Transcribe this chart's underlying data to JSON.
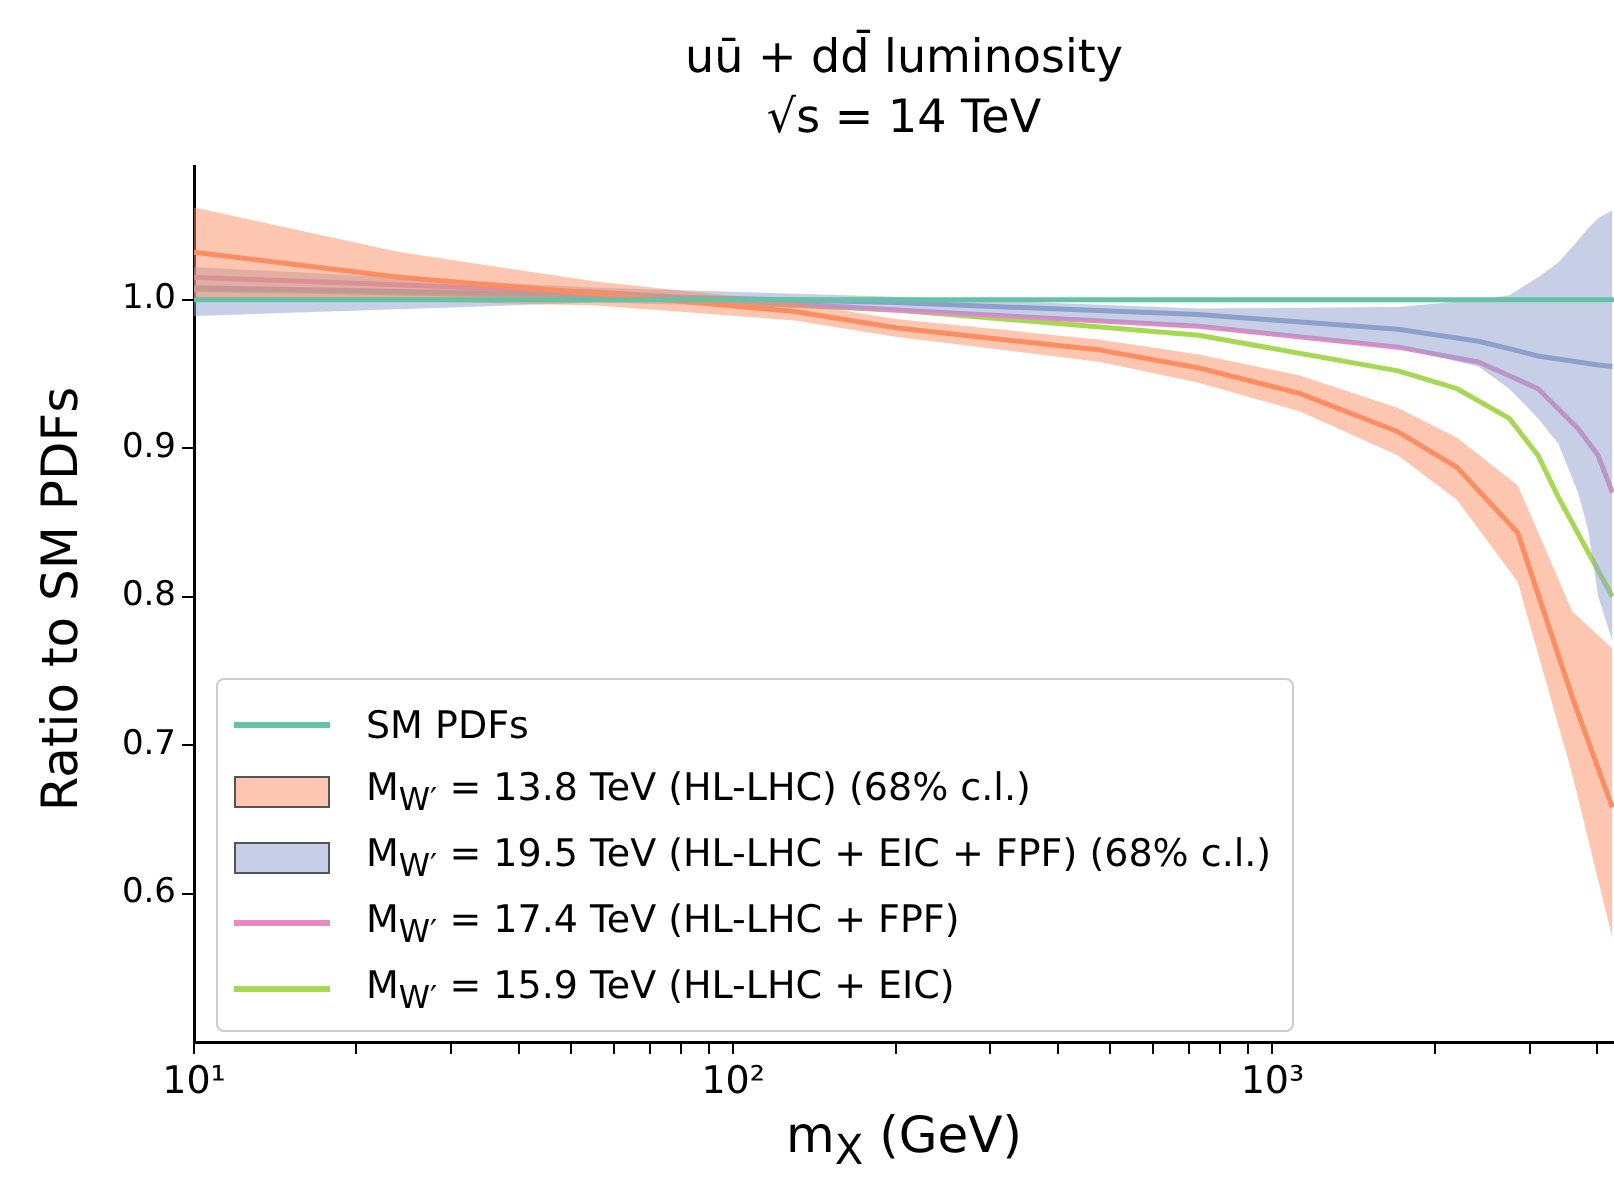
{
  "chart_data": {
    "type": "line",
    "title": "uū + dd̄ luminosity",
    "subtitle": "√s = 14 TeV",
    "xlabel": "m$_{X}$ (GeV)",
    "ylabel": "Ratio to SM PDFs",
    "log": "x",
    "xlim": [
      10,
      4300
    ],
    "ylim": [
      0.5,
      1.09
    ],
    "xticks": [
      {
        "value": 10,
        "label": "10¹"
      },
      {
        "value": 20,
        "label": null
      },
      {
        "value": 30,
        "label": null
      },
      {
        "value": 40,
        "label": null
      },
      {
        "value": 50,
        "label": null
      },
      {
        "value": 60,
        "label": null
      },
      {
        "value": 70,
        "label": null
      },
      {
        "value": 80,
        "label": null
      },
      {
        "value": 90,
        "label": null
      },
      {
        "value": 100,
        "label": "10²"
      },
      {
        "value": 200,
        "label": null
      },
      {
        "value": 300,
        "label": null
      },
      {
        "value": 400,
        "label": null
      },
      {
        "value": 500,
        "label": null
      },
      {
        "value": 600,
        "label": null
      },
      {
        "value": 700,
        "label": null
      },
      {
        "value": 800,
        "label": null
      },
      {
        "value": 900,
        "label": null
      },
      {
        "value": 1000,
        "label": "10³"
      },
      {
        "value": 2000,
        "label": null
      },
      {
        "value": 3000,
        "label": null
      },
      {
        "value": 4000,
        "label": null
      }
    ],
    "yticks": [
      0.6,
      0.7,
      0.8,
      0.9,
      {
        "value": 1,
        "label": "1.0"
      }
    ],
    "grid": false,
    "legend": "bottom left",
    "marker": "none",
    "line_style": "solid",
    "series": [
      {
        "name": "SM PDFs",
        "color": "#66c2a5",
        "x": [
          10,
          4300
        ],
        "values": [
          1,
          1
        ]
      },
      {
        "name": "M$_{W′}$ = 13.8 TeV (HL-LHC) (68% c.l.)",
        "color": "#fc8d62",
        "x": [
          10,
          24,
          56,
          130,
          200,
          480,
          730,
          1120,
          1710,
          2200,
          2850,
          3600,
          4270
        ],
        "values": [
          1.032,
          1.015,
          1.004,
          0.992,
          0.981,
          0.966,
          0.954,
          0.937,
          0.911,
          0.887,
          0.843,
          0.732,
          0.658
        ],
        "lower": [
          1.0,
          0.999,
          0.996,
          0.986,
          0.975,
          0.958,
          0.944,
          0.925,
          0.895,
          0.865,
          0.81,
          0.68,
          0.57
        ],
        "upper": [
          1.062,
          1.032,
          1.012,
          0.998,
          0.987,
          0.973,
          0.963,
          0.949,
          0.927,
          0.907,
          0.875,
          0.79,
          0.765
        ]
      },
      {
        "name": "M$_{W′}$ = 19.5 TeV (HL-LHC + EIC + FPF) (68% c.l.)",
        "color": "#8da0cb",
        "x": [
          10,
          56,
          200,
          730,
          1710,
          2410,
          2750,
          3110,
          3390,
          3690,
          3850,
          4020,
          4270
        ],
        "values": [
          1.008,
          1.003,
          0.998,
          0.99,
          0.98,
          0.972,
          0.967,
          0.962,
          0.96,
          0.958,
          0.957,
          0.956,
          0.955
        ],
        "lower": [
          0.989,
          0.998,
          0.993,
          0.982,
          0.968,
          0.955,
          0.94,
          0.92,
          0.903,
          0.87,
          0.845,
          0.8,
          0.77
        ],
        "upper": [
          1.022,
          1.008,
          1.002,
          0.994,
          0.995,
          1.0,
          1.003,
          1.015,
          1.025,
          1.04,
          1.048,
          1.055,
          1.06
        ]
      },
      {
        "name": "M$_{W′}$ = 17.4 TeV (HL-LHC + FPF)",
        "color": "#e78ac3",
        "x": [
          10,
          56,
          200,
          730,
          1710,
          2410,
          3110,
          3690,
          4020,
          4270
        ],
        "values": [
          1.015,
          1.005,
          0.993,
          0.982,
          0.968,
          0.958,
          0.94,
          0.913,
          0.895,
          0.87
        ]
      },
      {
        "name": "M$_{W′}$ = 15.9 TeV (HL-LHC + EIC)",
        "color": "#a6d854",
        "x": [
          10,
          56,
          200,
          730,
          1710,
          2200,
          2750,
          3110,
          3390,
          3850,
          4270
        ],
        "values": [
          1.007,
          1.002,
          0.993,
          0.976,
          0.952,
          0.94,
          0.92,
          0.895,
          0.867,
          0.83,
          0.8
        ]
      }
    ]
  }
}
